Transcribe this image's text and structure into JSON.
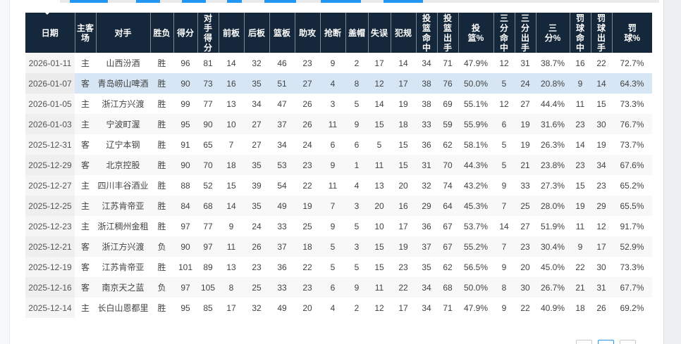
{
  "colors": {
    "header_bg": "#15273b",
    "accent_blue": "#2196f3",
    "row_highlight": "#d6e6f4",
    "row_alt": "#f8f8f8"
  },
  "table": {
    "columns": [
      "日期",
      "主客场",
      "对手",
      "胜负",
      "得分",
      "对手得分",
      "前板",
      "后板",
      "篮板",
      "助攻",
      "抢断",
      "盖帽",
      "失误",
      "犯规",
      "投篮命中",
      "投篮出手",
      "投篮%",
      "三分命中",
      "三分出手",
      "三分%",
      "罚球命中",
      "罚球出手",
      "罚球%"
    ],
    "highlighted_row_index": 1,
    "rows": [
      [
        "2026-01-11",
        "主",
        "山西汾酒",
        "胜",
        "96",
        "81",
        "14",
        "32",
        "46",
        "23",
        "9",
        "2",
        "17",
        "14",
        "34",
        "71",
        "47.9%",
        "12",
        "31",
        "38.7%",
        "16",
        "22",
        "72.7%"
      ],
      [
        "2026-01-07",
        "客",
        "青岛崂山啤酒",
        "胜",
        "90",
        "73",
        "16",
        "35",
        "51",
        "27",
        "4",
        "8",
        "12",
        "17",
        "38",
        "76",
        "50.0%",
        "5",
        "24",
        "20.8%",
        "9",
        "14",
        "64.3%"
      ],
      [
        "2026-01-05",
        "主",
        "浙江方兴渡",
        "胜",
        "99",
        "77",
        "13",
        "34",
        "47",
        "26",
        "3",
        "5",
        "14",
        "19",
        "38",
        "69",
        "55.1%",
        "12",
        "27",
        "44.4%",
        "11",
        "15",
        "73.3%"
      ],
      [
        "2026-01-03",
        "主",
        "宁波町渥",
        "胜",
        "95",
        "90",
        "10",
        "27",
        "37",
        "26",
        "11",
        "9",
        "15",
        "18",
        "33",
        "59",
        "55.9%",
        "6",
        "19",
        "31.6%",
        "23",
        "30",
        "76.7%"
      ],
      [
        "2025-12-31",
        "客",
        "辽宁本钢",
        "胜",
        "91",
        "65",
        "7",
        "27",
        "34",
        "24",
        "6",
        "6",
        "5",
        "15",
        "36",
        "62",
        "58.1%",
        "5",
        "19",
        "26.3%",
        "14",
        "19",
        "73.7%"
      ],
      [
        "2025-12-29",
        "客",
        "北京控股",
        "胜",
        "90",
        "70",
        "18",
        "35",
        "53",
        "23",
        "9",
        "1",
        "11",
        "15",
        "31",
        "70",
        "44.3%",
        "5",
        "21",
        "23.8%",
        "23",
        "34",
        "67.6%"
      ],
      [
        "2025-12-27",
        "主",
        "四川丰谷酒业",
        "胜",
        "88",
        "52",
        "15",
        "39",
        "54",
        "22",
        "11",
        "4",
        "13",
        "20",
        "32",
        "74",
        "43.2%",
        "9",
        "33",
        "27.3%",
        "15",
        "23",
        "65.2%"
      ],
      [
        "2025-12-25",
        "主",
        "江苏肯帝亚",
        "胜",
        "84",
        "68",
        "14",
        "35",
        "49",
        "19",
        "7",
        "3",
        "20",
        "16",
        "29",
        "64",
        "45.3%",
        "7",
        "25",
        "28.0%",
        "19",
        "29",
        "65.5%"
      ],
      [
        "2025-12-23",
        "主",
        "浙江稠州金租",
        "胜",
        "97",
        "77",
        "9",
        "24",
        "33",
        "25",
        "9",
        "5",
        "10",
        "17",
        "36",
        "67",
        "53.7%",
        "14",
        "27",
        "51.9%",
        "11",
        "12",
        "91.7%"
      ],
      [
        "2025-12-21",
        "客",
        "浙江方兴渡",
        "负",
        "90",
        "97",
        "11",
        "26",
        "37",
        "18",
        "5",
        "3",
        "15",
        "19",
        "37",
        "67",
        "55.2%",
        "7",
        "23",
        "30.4%",
        "9",
        "17",
        "52.9%"
      ],
      [
        "2025-12-19",
        "客",
        "江苏肯帝亚",
        "胜",
        "101",
        "89",
        "13",
        "23",
        "36",
        "22",
        "5",
        "5",
        "15",
        "23",
        "35",
        "62",
        "56.5%",
        "9",
        "20",
        "45.0%",
        "22",
        "30",
        "73.3%"
      ],
      [
        "2025-12-16",
        "客",
        "南京天之蓝",
        "负",
        "97",
        "105",
        "8",
        "25",
        "33",
        "23",
        "6",
        "9",
        "11",
        "22",
        "34",
        "68",
        "50.0%",
        "8",
        "30",
        "26.7%",
        "21",
        "31",
        "67.7%"
      ],
      [
        "2025-12-14",
        "主",
        "长白山恩都里",
        "胜",
        "95",
        "85",
        "17",
        "32",
        "49",
        "20",
        "4",
        "2",
        "12",
        "17",
        "34",
        "71",
        "47.9%",
        "9",
        "22",
        "40.9%",
        "18",
        "26",
        "69.2%"
      ]
    ]
  },
  "pagination": {
    "visible_buttons": 3,
    "active_index": 1
  }
}
